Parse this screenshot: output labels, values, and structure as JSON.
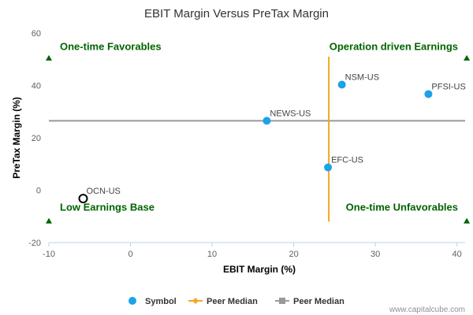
{
  "chart_data": {
    "type": "scatter",
    "title": "EBIT Margin Versus PreTax Margin",
    "xlabel": "EBIT Margin (%)",
    "ylabel": "PreTax Margin (%)",
    "xlim": [
      -10,
      41
    ],
    "ylim": [
      -20,
      60
    ],
    "xticks": [
      -10,
      0,
      10,
      20,
      30,
      40
    ],
    "yticks": [
      -20,
      0,
      20,
      40,
      60
    ],
    "grid": false,
    "points": [
      {
        "label": "NSM-US",
        "x": 25.9,
        "y": 40.3,
        "marker": "filled"
      },
      {
        "label": "PFSI-US",
        "x": 36.5,
        "y": 36.7,
        "marker": "filled"
      },
      {
        "label": "NEWS-US",
        "x": 16.7,
        "y": 26.5,
        "marker": "filled"
      },
      {
        "label": "EFC-US",
        "x": 24.2,
        "y": 8.7,
        "marker": "filled"
      },
      {
        "label": "OCN-US",
        "x": -5.8,
        "y": -3.2,
        "marker": "hollow"
      }
    ],
    "peer_median_x": 24.3,
    "peer_median_y": 26.5,
    "quadrants": {
      "top_left": "One-time Favorables",
      "top_right": "Operation driven Earnings",
      "bottom_left": "Low Earnings Base",
      "bottom_right": "One-time Unfavorables"
    },
    "legend": {
      "placement": "bottom-center",
      "items": [
        {
          "label": "Symbol"
        },
        {
          "label": "Peer Median"
        },
        {
          "label": "Peer Median"
        }
      ]
    },
    "colors": {
      "points": "#1aa3e8",
      "median_x_line": "#f5a623",
      "median_y_line": "#999999",
      "quadrant_text": "#006400",
      "axis": "#c0d0e0"
    }
  },
  "credit": "www.capitalcube.com"
}
